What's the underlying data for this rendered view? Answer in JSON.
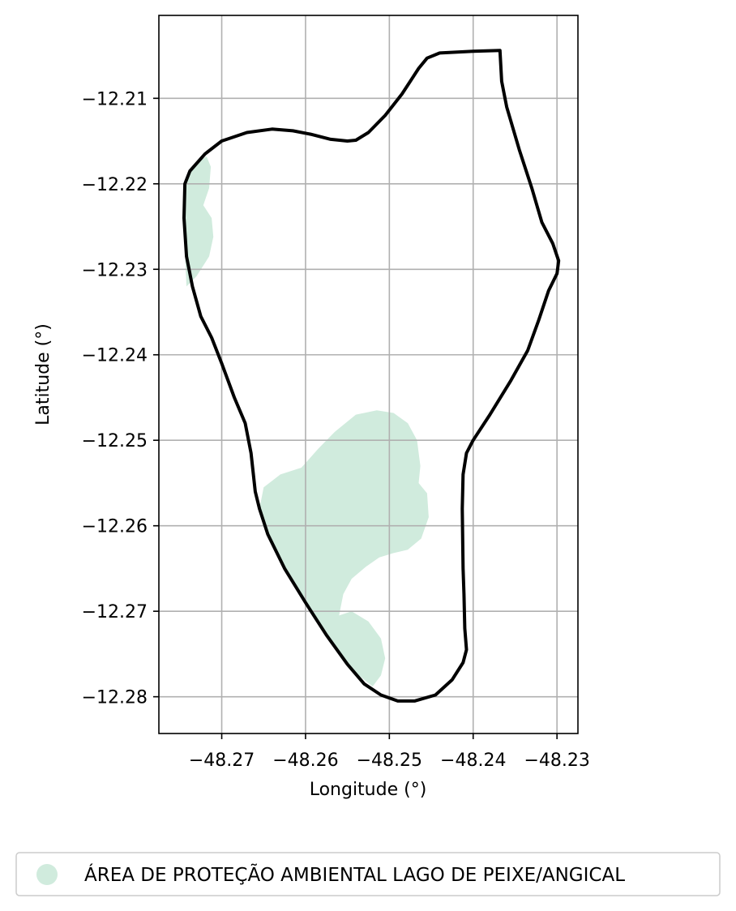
{
  "chart_data": {
    "type": "map",
    "xlabel": "Longitude (°)",
    "ylabel": "Latitude (°)",
    "xlim": [
      -48.2775,
      -48.2275
    ],
    "ylim": [
      -12.2843,
      -12.2003
    ],
    "x_ticks": [
      -48.27,
      -48.26,
      -48.25,
      -48.24,
      -48.23
    ],
    "x_tick_labels": [
      "−48.27",
      "−48.26",
      "−48.25",
      "−48.24",
      "−48.23"
    ],
    "y_ticks": [
      -12.21,
      -12.22,
      -12.23,
      -12.24,
      -12.25,
      -12.26,
      -12.27,
      -12.28
    ],
    "y_tick_labels": [
      "−12.21",
      "−12.22",
      "−12.23",
      "−12.24",
      "−12.25",
      "−12.26",
      "−12.27",
      "−12.28"
    ],
    "grid": true,
    "legend_position": "bottom",
    "legend": [
      {
        "label": "ÁREA DE PROTEÇÃO AMBIENTAL LAGO DE PEIXE/ANGICAL",
        "color": "#d0ebdd"
      }
    ],
    "boundary": {
      "color": "#000000",
      "points": [
        [
          -48.2594,
          -12.2142
        ],
        [
          -48.257,
          -12.2148
        ],
        [
          -48.255,
          -12.215
        ],
        [
          -48.254,
          -12.2149
        ],
        [
          -48.2525,
          -12.214
        ],
        [
          -48.2505,
          -12.212
        ],
        [
          -48.2485,
          -12.2095
        ],
        [
          -48.2465,
          -12.2065
        ],
        [
          -48.2455,
          -12.2053
        ],
        [
          -48.244,
          -12.2047
        ],
        [
          -48.24,
          -12.2045
        ],
        [
          -48.2368,
          -12.2044
        ],
        [
          -48.2366,
          -12.208
        ],
        [
          -48.236,
          -12.211
        ],
        [
          -48.2345,
          -12.216
        ],
        [
          -48.233,
          -12.2205
        ],
        [
          -48.2318,
          -12.2245
        ],
        [
          -48.2305,
          -12.227
        ],
        [
          -48.2298,
          -12.229
        ],
        [
          -48.23,
          -12.2305
        ],
        [
          -48.231,
          -12.2325
        ],
        [
          -48.2322,
          -12.236
        ],
        [
          -48.2335,
          -12.2395
        ],
        [
          -48.2355,
          -12.243
        ],
        [
          -48.238,
          -12.247
        ],
        [
          -48.24,
          -12.25
        ],
        [
          -48.2408,
          -12.2515
        ],
        [
          -48.2412,
          -12.254
        ],
        [
          -48.2413,
          -12.258
        ],
        [
          -48.2412,
          -12.265
        ],
        [
          -48.2411,
          -12.268
        ],
        [
          -48.241,
          -12.272
        ],
        [
          -48.2408,
          -12.2745
        ],
        [
          -48.2412,
          -12.276
        ],
        [
          -48.2425,
          -12.278
        ],
        [
          -48.2445,
          -12.2798
        ],
        [
          -48.247,
          -12.2805
        ],
        [
          -48.249,
          -12.2805
        ],
        [
          -48.251,
          -12.2798
        ],
        [
          -48.253,
          -12.2785
        ],
        [
          -48.255,
          -12.2762
        ],
        [
          -48.2575,
          -12.2728
        ],
        [
          -48.26,
          -12.269
        ],
        [
          -48.2625,
          -12.265
        ],
        [
          -48.2645,
          -12.261
        ],
        [
          -48.2655,
          -12.258
        ],
        [
          -48.266,
          -12.256
        ],
        [
          -48.2665,
          -12.2515
        ],
        [
          -48.2672,
          -12.248
        ],
        [
          -48.2685,
          -12.245
        ],
        [
          -48.27,
          -12.241
        ],
        [
          -48.2712,
          -12.238
        ],
        [
          -48.2725,
          -12.2355
        ],
        [
          -48.2735,
          -12.232
        ],
        [
          -48.2742,
          -12.2285
        ],
        [
          -48.2745,
          -12.224
        ],
        [
          -48.2744,
          -12.22
        ],
        [
          -48.2738,
          -12.2185
        ],
        [
          -48.272,
          -12.2165
        ],
        [
          -48.27,
          -12.215
        ],
        [
          -48.267,
          -12.214
        ],
        [
          -48.264,
          -12.2136
        ],
        [
          -48.2615,
          -12.2138
        ],
        [
          -48.2594,
          -12.2142
        ]
      ]
    },
    "protected_areas": [
      {
        "name": "ÁREA DE PROTEÇÃO AMBIENTAL LAGO DE PEIXE/ANGICAL",
        "color": "#d0ebdd",
        "parts": [
          [
            [
              -48.2742,
              -12.2195
            ],
            [
              -48.273,
              -12.2175
            ],
            [
              -48.2718,
              -12.2168
            ],
            [
              -48.2713,
              -12.218
            ],
            [
              -48.2715,
              -12.2205
            ],
            [
              -48.2722,
              -12.2225
            ],
            [
              -48.2712,
              -12.224
            ],
            [
              -48.271,
              -12.2262
            ],
            [
              -48.2715,
              -12.2285
            ],
            [
              -48.273,
              -12.2308
            ],
            [
              -48.2742,
              -12.232
            ],
            [
              -48.2745,
              -12.226
            ]
          ],
          [
            [
              -48.265,
              -12.2555
            ],
            [
              -48.263,
              -12.254
            ],
            [
              -48.2605,
              -12.2532
            ],
            [
              -48.2585,
              -12.251
            ],
            [
              -48.2565,
              -12.249
            ],
            [
              -48.254,
              -12.247
            ],
            [
              -48.2515,
              -12.2465
            ],
            [
              -48.2495,
              -12.2468
            ],
            [
              -48.2478,
              -12.248
            ],
            [
              -48.2467,
              -12.25
            ],
            [
              -48.2463,
              -12.253
            ],
            [
              -48.2465,
              -12.255
            ],
            [
              -48.2455,
              -12.2562
            ],
            [
              -48.2453,
              -12.259
            ],
            [
              -48.2462,
              -12.2615
            ],
            [
              -48.2478,
              -12.2628
            ],
            [
              -48.2495,
              -12.2632
            ],
            [
              -48.2512,
              -12.2637
            ],
            [
              -48.2528,
              -12.2648
            ],
            [
              -48.2545,
              -12.2662
            ],
            [
              -48.2555,
              -12.268
            ],
            [
              -48.256,
              -12.2705
            ],
            [
              -48.2545,
              -12.27
            ],
            [
              -48.2525,
              -12.2712
            ],
            [
              -48.251,
              -12.2732
            ],
            [
              -48.2505,
              -12.2755
            ],
            [
              -48.251,
              -12.2775
            ],
            [
              -48.252,
              -12.2788
            ],
            [
              -48.2548,
              -12.2766
            ],
            [
              -48.2575,
              -12.2728
            ],
            [
              -48.26,
              -12.269
            ],
            [
              -48.2625,
              -12.265
            ],
            [
              -48.2645,
              -12.261
            ],
            [
              -48.2655,
              -12.258
            ]
          ]
        ]
      }
    ]
  }
}
